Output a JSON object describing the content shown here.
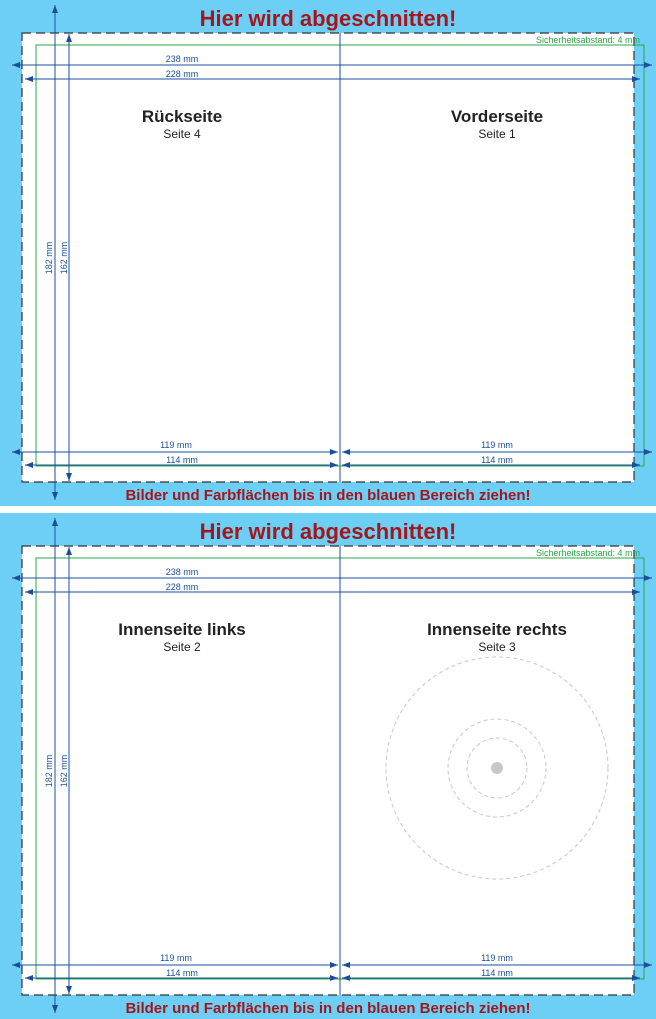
{
  "panels": [
    {
      "header": "Hier wird abgeschnitten!",
      "footer": "Bilder und Farbflächen bis in den blauen Bereich ziehen!",
      "safety_note": "Sicherheitsabstand: 4 mm",
      "dims": {
        "width_outer": "238 mm",
        "width_inner": "228 mm",
        "height_outer": "182 mm",
        "height_inner": "162 mm",
        "half_outer_left": "119 mm",
        "half_inner_left": "114 mm",
        "half_outer_right": "119 mm",
        "half_inner_right": "114 mm"
      },
      "left_page": {
        "title": "Rückseite",
        "subtitle": "Seite 4"
      },
      "right_page": {
        "title": "Vorderseite",
        "subtitle": "Seite 1"
      },
      "has_disc": false
    },
    {
      "header": "Hier wird abgeschnitten!",
      "footer": "Bilder und Farbflächen bis in den blauen Bereich ziehen!",
      "safety_note": "Sicherheitsabstand: 4 mm",
      "dims": {
        "width_outer": "238 mm",
        "width_inner": "228 mm",
        "height_outer": "182 mm",
        "height_inner": "162 mm",
        "half_outer_left": "119 mm",
        "half_inner_left": "114 mm",
        "half_outer_right": "119 mm",
        "half_inner_right": "114 mm"
      },
      "left_page": {
        "title": "Innenseite links",
        "subtitle": "Seite 2"
      },
      "right_page": {
        "title": "Innenseite rechts",
        "subtitle": "Seite 3"
      },
      "has_disc": true
    }
  ],
  "colors": {
    "bleed": "#6ecff6",
    "heading_red": "#a5161b",
    "dimension_blue": "#1b4f9c",
    "safety_green": "#2aa84a",
    "disc_gray": "#c8c8c8"
  }
}
